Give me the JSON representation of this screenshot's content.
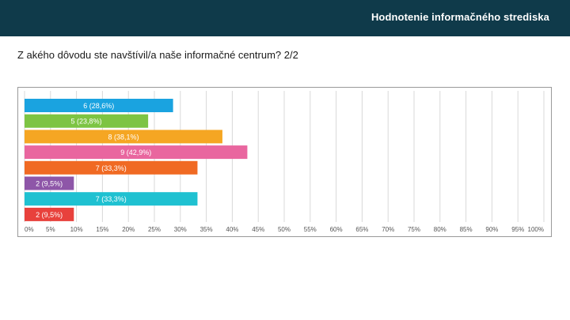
{
  "header": {
    "title": "Hodnotenie informačného strediska",
    "background": "#0f3a4a"
  },
  "question": {
    "text": "Z akého dôvodu ste navštívil/a naše informačné centrum? 2/2"
  },
  "chart_data": {
    "type": "bar",
    "orientation": "horizontal",
    "title": "",
    "xlabel": "",
    "ylabel": "",
    "xlim": [
      0,
      100
    ],
    "grid": true,
    "ticks": [
      "0%",
      "5%",
      "10%",
      "15%",
      "20%",
      "25%",
      "30%",
      "35%",
      "40%",
      "45%",
      "50%",
      "55%",
      "60%",
      "65%",
      "70%",
      "75%",
      "80%",
      "85%",
      "90%",
      "95%",
      "100%"
    ],
    "bars": [
      {
        "count": 6,
        "percent": 28.6,
        "label": "6 (28,6%)",
        "color": "#1aa3e0"
      },
      {
        "count": 5,
        "percent": 23.8,
        "label": "5 (23,8%)",
        "color": "#7dc443"
      },
      {
        "count": 8,
        "percent": 38.1,
        "label": "8 (38,1%)",
        "color": "#f5a623"
      },
      {
        "count": 9,
        "percent": 42.9,
        "label": "9 (42,9%)",
        "color": "#e9669f"
      },
      {
        "count": 7,
        "percent": 33.3,
        "label": "7 (33,3%)",
        "color": "#f06a23"
      },
      {
        "count": 2,
        "percent": 9.5,
        "label": "2 (9,5%)",
        "color": "#8e56a8"
      },
      {
        "count": 7,
        "percent": 33.3,
        "label": "7 (33,3%)",
        "color": "#1fc1d1"
      },
      {
        "count": 2,
        "percent": 9.5,
        "label": "2 (9,5%)",
        "color": "#e8413c"
      }
    ]
  }
}
